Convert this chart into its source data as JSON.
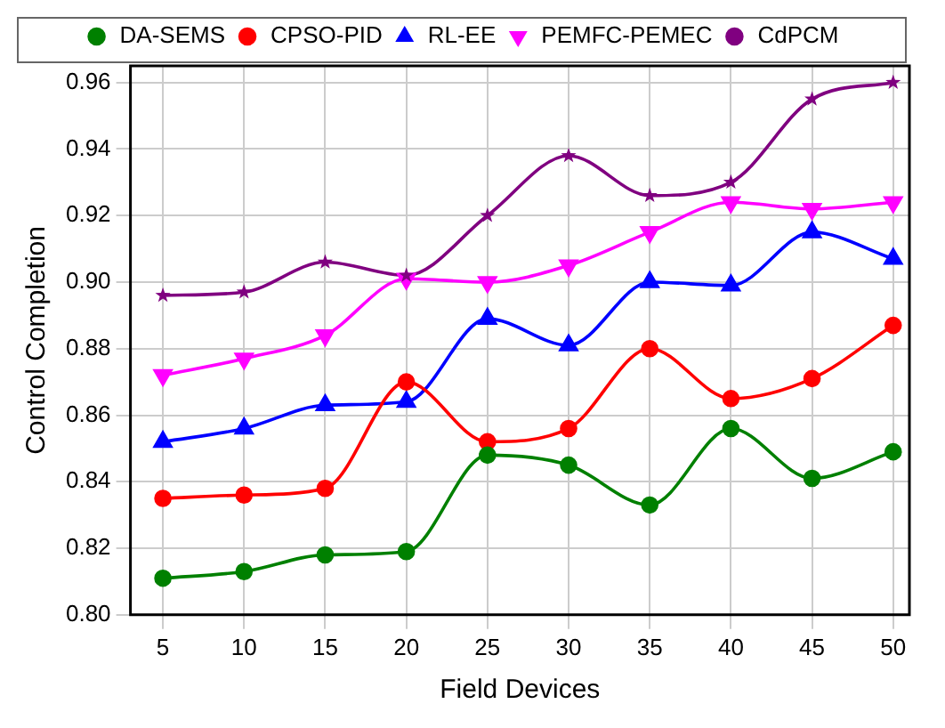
{
  "chart_data": {
    "type": "line",
    "xlabel": "Field Devices",
    "ylabel": "Control Completion",
    "x": [
      5,
      10,
      15,
      20,
      25,
      30,
      35,
      40,
      45,
      50
    ],
    "series": [
      {
        "name": "DA-SEMS",
        "color": "#008000",
        "marker": "circle",
        "values": [
          0.811,
          0.813,
          0.818,
          0.819,
          0.848,
          0.845,
          0.833,
          0.856,
          0.841,
          0.849
        ]
      },
      {
        "name": "CPSO-PID",
        "color": "#ff0000",
        "marker": "circle",
        "values": [
          0.835,
          0.836,
          0.838,
          0.87,
          0.852,
          0.856,
          0.88,
          0.865,
          0.871,
          0.887
        ]
      },
      {
        "name": "RL-EE",
        "color": "#0000ff",
        "marker": "triangle",
        "values": [
          0.852,
          0.856,
          0.863,
          0.864,
          0.889,
          0.881,
          0.9,
          0.899,
          0.915,
          0.907
        ]
      },
      {
        "name": "PEMFC-PEMEC",
        "color": "#ff00ff",
        "marker": "triangle",
        "values": [
          0.872,
          0.877,
          0.884,
          0.901,
          0.9,
          0.905,
          0.915,
          0.924,
          0.922,
          0.924
        ]
      },
      {
        "name": "CdPCM",
        "color": "#800080",
        "marker": "star",
        "values": [
          0.896,
          0.897,
          0.906,
          0.902,
          0.92,
          0.938,
          0.926,
          0.93,
          0.955,
          0.96
        ]
      }
    ],
    "xlim": [
      3,
      51
    ],
    "xticks": [
      5,
      10,
      15,
      20,
      25,
      30,
      35,
      40,
      45,
      50
    ],
    "ylim": [
      0.8,
      0.965
    ],
    "yticks": [
      {
        "value": 0.8,
        "label": "0.80"
      },
      {
        "value": 0.82,
        "label": "0.82"
      },
      {
        "value": 0.84,
        "label": "0.84"
      },
      {
        "value": 0.86,
        "label": "0.86"
      },
      {
        "value": 0.88,
        "label": "0.88"
      },
      {
        "value": 0.9,
        "label": "0.90"
      },
      {
        "value": 0.92,
        "label": "0.92"
      },
      {
        "value": 0.94,
        "label": "0.94"
      },
      {
        "value": 0.96,
        "label": "0.96"
      }
    ],
    "grid": true,
    "legend": "top",
    "line_style": "solid"
  }
}
